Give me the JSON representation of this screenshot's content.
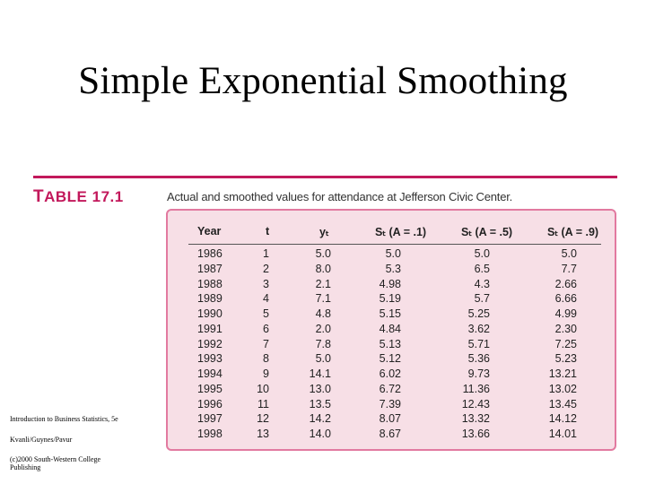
{
  "title": "Simple Exponential Smoothing",
  "table": {
    "label_prefix": "T",
    "label_rest": "ABLE 17.1",
    "caption": "Actual and smoothed values for attendance at Jefferson Civic Center.",
    "headers": [
      "Year",
      "t",
      "yₜ",
      "Sₜ (A = .1)",
      "Sₜ (A = .5)",
      "Sₜ (A = .9)"
    ],
    "rows": [
      [
        "1986",
        "1",
        "5.0",
        "5.0",
        "5.0",
        "5.0"
      ],
      [
        "1987",
        "2",
        "8.0",
        "5.3",
        "6.5",
        "7.7"
      ],
      [
        "1988",
        "3",
        "2.1",
        "4.98",
        "4.3",
        "2.66"
      ],
      [
        "1989",
        "4",
        "7.1",
        "5.19",
        "5.7",
        "6.66"
      ],
      [
        "1990",
        "5",
        "4.8",
        "5.15",
        "5.25",
        "4.99"
      ],
      [
        "1991",
        "6",
        "2.0",
        "4.84",
        "3.62",
        "2.30"
      ],
      [
        "1992",
        "7",
        "7.8",
        "5.13",
        "5.71",
        "7.25"
      ],
      [
        "1993",
        "8",
        "5.0",
        "5.12",
        "5.36",
        "5.23"
      ],
      [
        "1994",
        "9",
        "14.1",
        "6.02",
        "9.73",
        "13.21"
      ],
      [
        "1995",
        "10",
        "13.0",
        "6.72",
        "11.36",
        "13.02"
      ],
      [
        "1996",
        "11",
        "13.5",
        "7.39",
        "12.43",
        "13.45"
      ],
      [
        "1997",
        "12",
        "14.2",
        "8.07",
        "13.32",
        "14.12"
      ],
      [
        "1998",
        "13",
        "14.0",
        "8.67",
        "13.66",
        "14.01"
      ]
    ]
  },
  "footer": {
    "line1": "Introduction to Business Statistics, 5e",
    "line2": "Kvanli/Guynes/Pavur",
    "line3": "(c)2000 South-Western College",
    "line4": "Publishing"
  },
  "colors": {
    "accent": "#c2185b",
    "table_fill": "#f7dfe6",
    "table_border": "#e27aa0"
  }
}
